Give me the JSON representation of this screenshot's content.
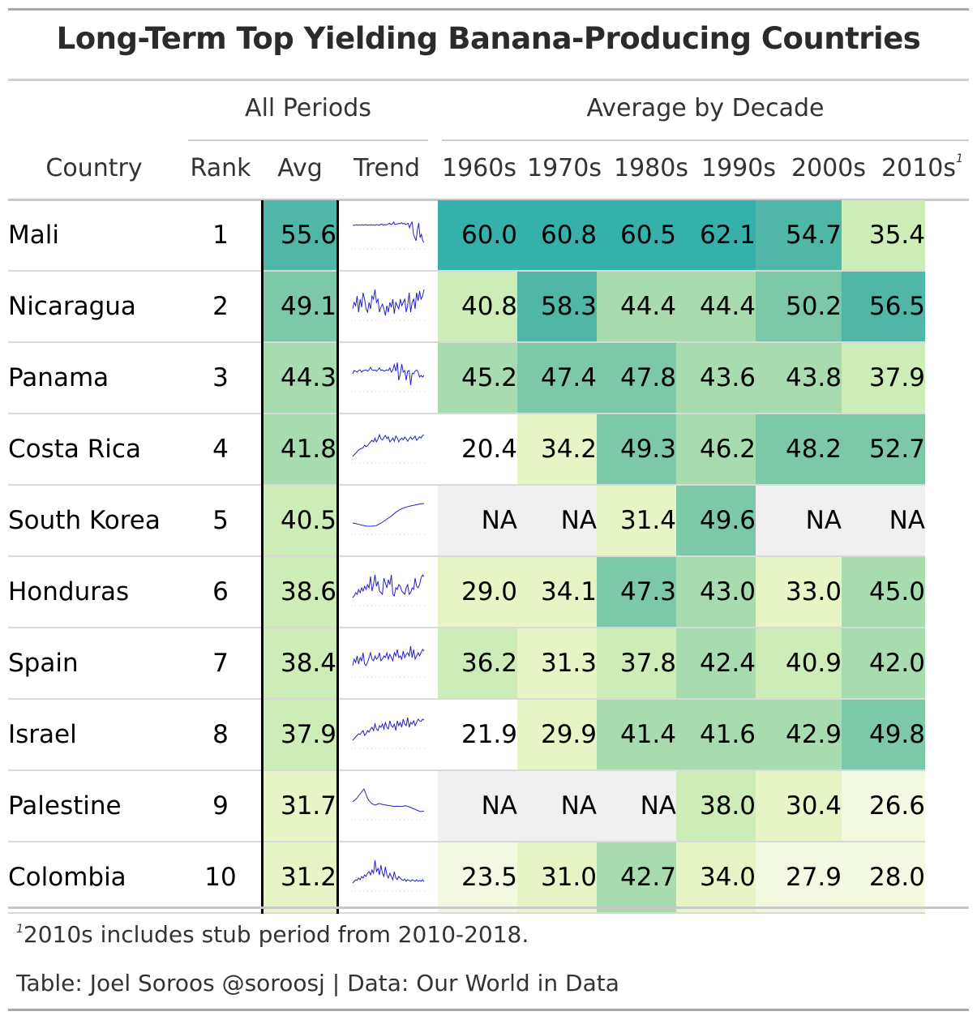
{
  "title": "Long-Term Top Yielding Banana-Producing Countries",
  "spanners": {
    "all_periods": "All Periods",
    "by_decade": "Average by Decade"
  },
  "columns": {
    "country": "Country",
    "rank": "Rank",
    "avg": "Avg",
    "trend": "Trend",
    "d1960": "1960s",
    "d1970": "1970s",
    "d1980": "1980s",
    "d1990": "1990s",
    "d2000": "2000s",
    "d2010": "2010s",
    "d2010_mark": "1"
  },
  "rows": [
    {
      "country": "Mali",
      "rank": "1",
      "avg": "55.6",
      "d": [
        "60.0",
        "60.8",
        "60.5",
        "62.1",
        "54.7",
        "35.4"
      ],
      "trend": [
        0.68,
        0.68,
        0.68,
        0.7,
        0.68,
        0.69,
        0.68,
        0.7,
        0.68,
        0.69,
        0.7,
        0.68,
        0.69,
        0.68,
        0.7,
        0.68,
        0.69,
        0.68,
        0.7,
        0.69,
        0.68,
        0.7,
        0.72,
        0.68,
        0.7,
        0.69,
        0.7,
        0.72,
        0.74,
        0.7,
        0.72,
        0.78,
        0.7,
        0.72,
        0.72,
        0.74,
        0.73,
        0.76,
        0.72,
        0.74,
        0.7,
        0.72,
        0.74,
        0.6,
        0.72,
        0.78,
        0.4,
        0.3,
        0.2,
        0.55,
        0.75,
        0.3,
        0.4,
        0.2,
        0.15
      ]
    },
    {
      "country": "Nicaragua",
      "rank": "2",
      "avg": "49.1",
      "d": [
        "40.8",
        "58.3",
        "44.4",
        "44.4",
        "50.2",
        "56.5"
      ],
      "trend": [
        0.3,
        0.5,
        0.4,
        0.7,
        0.2,
        0.6,
        0.35,
        0.8,
        0.6,
        0.3,
        0.2,
        0.5,
        0.3,
        0.7,
        0.6,
        0.9,
        0.5,
        0.6,
        0.2,
        0.35,
        0.45,
        0.3,
        0.1,
        0.4,
        0.2,
        0.5,
        0.35,
        0.6,
        0.15,
        0.5,
        0.4,
        0.3,
        0.6,
        0.4,
        0.5,
        0.6,
        0.2,
        0.4,
        0.8,
        0.2,
        0.5,
        0.6,
        0.3,
        0.8,
        0.55,
        0.85,
        0.6,
        0.7,
        0.9
      ]
    },
    {
      "country": "Panama",
      "rank": "3",
      "avg": "44.3",
      "d": [
        "45.2",
        "47.4",
        "47.8",
        "43.6",
        "43.8",
        "37.9"
      ],
      "trend": [
        0.5,
        0.6,
        0.58,
        0.55,
        0.6,
        0.62,
        0.55,
        0.6,
        0.6,
        0.62,
        0.58,
        0.62,
        0.7,
        0.62,
        0.6,
        0.62,
        0.58,
        0.63,
        0.68,
        0.6,
        0.62,
        0.58,
        0.6,
        0.62,
        0.6,
        0.68,
        0.55,
        0.62,
        0.78,
        0.58,
        0.85,
        0.3,
        0.5,
        0.8,
        0.55,
        0.6,
        0.3,
        0.58,
        0.6,
        0.15,
        0.52,
        0.5,
        0.58,
        0.62,
        0.55,
        0.4,
        0.45,
        0.4,
        0.45
      ]
    },
    {
      "country": "Costa Rica",
      "rank": "4",
      "avg": "41.8",
      "d": [
        "20.4",
        "34.2",
        "49.3",
        "46.2",
        "48.2",
        "52.7"
      ],
      "trend": [
        0.15,
        0.2,
        0.25,
        0.3,
        0.35,
        0.38,
        0.4,
        0.42,
        0.5,
        0.45,
        0.48,
        0.55,
        0.6,
        0.65,
        0.6,
        0.72,
        0.6,
        0.68,
        0.82,
        0.7,
        0.66,
        0.74,
        0.8,
        0.7,
        0.75,
        0.6,
        0.65,
        0.72,
        0.62,
        0.78,
        0.72,
        0.6,
        0.68,
        0.72,
        0.66,
        0.75,
        0.7,
        0.62,
        0.7,
        0.75,
        0.68,
        0.72,
        0.78,
        0.65,
        0.7,
        0.76,
        0.72,
        0.8,
        0.82
      ]
    },
    {
      "country": "South Korea",
      "rank": "5",
      "avg": "40.5",
      "d": [
        "NA",
        "NA",
        "31.4",
        "49.6",
        "NA",
        "NA"
      ],
      "trend": [
        0.3,
        0.27,
        0.23,
        0.2,
        0.2,
        0.22,
        0.3,
        0.4,
        0.5,
        0.62,
        0.72,
        0.78,
        0.82,
        0.85,
        0.88,
        0.9
      ]
    },
    {
      "country": "Honduras",
      "rank": "6",
      "avg": "38.6",
      "d": [
        "29.0",
        "34.1",
        "47.3",
        "43.0",
        "33.0",
        "45.0"
      ],
      "trend": [
        0.2,
        0.25,
        0.35,
        0.3,
        0.45,
        0.35,
        0.5,
        0.4,
        0.55,
        0.45,
        0.6,
        0.5,
        0.85,
        0.4,
        0.6,
        0.9,
        0.55,
        0.7,
        0.4,
        0.35,
        0.3,
        0.8,
        0.65,
        0.5,
        0.75,
        0.6,
        0.9,
        0.3,
        0.25,
        0.5,
        0.45,
        0.6,
        0.55,
        0.4,
        0.35,
        0.3,
        0.5,
        0.6,
        0.3,
        0.35,
        0.5,
        0.45,
        0.8,
        0.55,
        0.5,
        0.6,
        0.8,
        0.9,
        0.85
      ]
    },
    {
      "country": "Spain",
      "rank": "7",
      "avg": "38.4",
      "d": [
        "36.2",
        "31.3",
        "37.8",
        "42.4",
        "40.9",
        "42.0"
      ],
      "trend": [
        0.3,
        0.5,
        0.4,
        0.6,
        0.35,
        0.55,
        0.45,
        0.7,
        0.35,
        0.3,
        0.4,
        0.55,
        0.7,
        0.5,
        0.45,
        0.6,
        0.5,
        0.55,
        0.7,
        0.45,
        0.5,
        0.6,
        0.55,
        0.7,
        0.5,
        0.65,
        0.55,
        0.45,
        0.7,
        0.6,
        0.8,
        0.55,
        0.6,
        0.5,
        0.75,
        0.55,
        0.65,
        0.7,
        0.6,
        0.9,
        0.55,
        0.8,
        0.5,
        0.6,
        0.7,
        0.6,
        0.7,
        0.8,
        0.75
      ]
    },
    {
      "country": "Israel",
      "rank": "8",
      "avg": "37.9",
      "d": [
        "21.9",
        "29.9",
        "41.4",
        "41.6",
        "42.9",
        "49.8"
      ],
      "trend": [
        0.2,
        0.25,
        0.3,
        0.35,
        0.4,
        0.38,
        0.45,
        0.5,
        0.35,
        0.4,
        0.5,
        0.45,
        0.55,
        0.6,
        0.5,
        0.7,
        0.55,
        0.5,
        0.65,
        0.6,
        0.7,
        0.55,
        0.75,
        0.6,
        0.55,
        0.8,
        0.65,
        0.6,
        0.7,
        0.5,
        0.8,
        0.65,
        0.75,
        0.6,
        0.85,
        0.7,
        0.65,
        0.9,
        0.6,
        0.75,
        0.7,
        0.8,
        0.65,
        0.75,
        0.85,
        0.8,
        0.78,
        0.85,
        0.82
      ]
    },
    {
      "country": "Palestine",
      "rank": "9",
      "avg": "31.7",
      "d": [
        "NA",
        "NA",
        "NA",
        "38.0",
        "30.4",
        "26.6"
      ],
      "trend": [
        0.5,
        0.6,
        0.75,
        0.9,
        0.6,
        0.45,
        0.4,
        0.45,
        0.42,
        0.4,
        0.38,
        0.36,
        0.37,
        0.36,
        0.38,
        0.35,
        0.3,
        0.25,
        0.2,
        0.22
      ]
    },
    {
      "country": "Colombia",
      "rank": "10",
      "avg": "31.2",
      "d": [
        "23.5",
        "31.0",
        "42.7",
        "34.0",
        "27.9",
        "28.0"
      ],
      "trend": [
        0.2,
        0.25,
        0.3,
        0.28,
        0.35,
        0.3,
        0.4,
        0.35,
        0.45,
        0.4,
        0.5,
        0.55,
        0.45,
        0.6,
        0.5,
        0.9,
        0.55,
        0.65,
        0.45,
        0.75,
        0.5,
        0.4,
        0.7,
        0.45,
        0.35,
        0.5,
        0.4,
        0.3,
        0.55,
        0.35,
        0.3,
        0.4,
        0.35,
        0.3,
        0.28,
        0.32,
        0.25,
        0.3,
        0.28,
        0.25,
        0.3,
        0.28,
        0.25,
        0.3,
        0.25,
        0.28,
        0.25,
        0.3,
        0.25
      ]
    }
  ],
  "colors": {
    "na": "#f0f0f0",
    "trend_line": "#2222cc",
    "rule": "#b0b0b0",
    "scale": [
      "#ffffff",
      "#f3f9e0",
      "#e6f4c6",
      "#ccecb8",
      "#a8dcae",
      "#7cc8a8",
      "#4fb6a8",
      "#35b0ab"
    ]
  },
  "footnote": {
    "mark": "1",
    "text": "2010s includes stub period from 2010-2018."
  },
  "source": "Table: Joel Soroos @soroosj | Data: Our World in Data"
}
